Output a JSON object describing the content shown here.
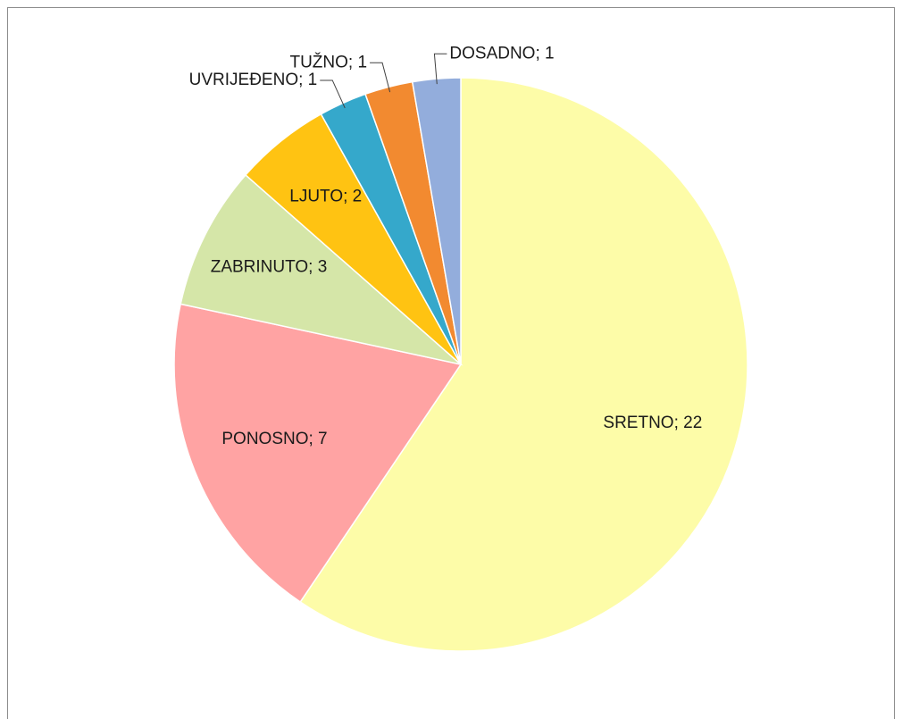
{
  "chart_data": {
    "type": "pie",
    "categories": [
      "SRETNO",
      "PONOSNO",
      "ZABRINUTO",
      "LJUTO",
      "UVRIJEĐENO",
      "TUŽNO",
      "DOSADNO"
    ],
    "values": [
      22,
      7,
      3,
      2,
      1,
      1,
      1
    ],
    "value_labels": [
      "SRETNO; 22",
      "PONOSNO; 7",
      "ZABRINUTO; 3",
      "LJUTO; 2",
      "UVRIJEĐENO; 1",
      "TUŽNO; 1",
      "DOSADNO; 1"
    ],
    "colors": [
      "#fdfca8",
      "#ffa3a3",
      "#d5e6a8",
      "#ffc312",
      "#35a8cb",
      "#f28a30",
      "#93addc"
    ]
  }
}
